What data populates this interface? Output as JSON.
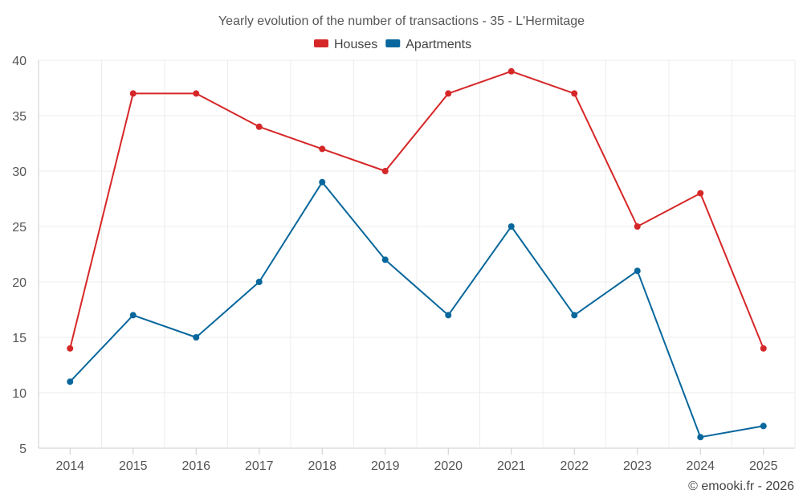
{
  "chart_data": {
    "type": "line",
    "title": "Yearly evolution of the number of transactions - 35 - L'Hermitage",
    "categories": [
      "2014",
      "2015",
      "2016",
      "2017",
      "2018",
      "2019",
      "2020",
      "2021",
      "2022",
      "2023",
      "2024",
      "2025"
    ],
    "series": [
      {
        "name": "Houses",
        "color": "#d62728",
        "values": [
          14,
          37,
          37,
          34,
          32,
          30,
          37,
          39,
          37,
          25,
          28,
          14
        ]
      },
      {
        "name": "Apartments",
        "color": "#08679c",
        "values": [
          11,
          17,
          15,
          20,
          29,
          22,
          17,
          25,
          17,
          21,
          6,
          7
        ]
      }
    ],
    "ylim": [
      5,
      40
    ],
    "yticks": [
      5,
      10,
      15,
      20,
      25,
      30,
      35,
      40
    ],
    "xlabel": "",
    "ylabel": "",
    "grid": true,
    "legend_position": "top-center"
  },
  "footer": {
    "copyright": "© emooki.fr - 2026"
  }
}
